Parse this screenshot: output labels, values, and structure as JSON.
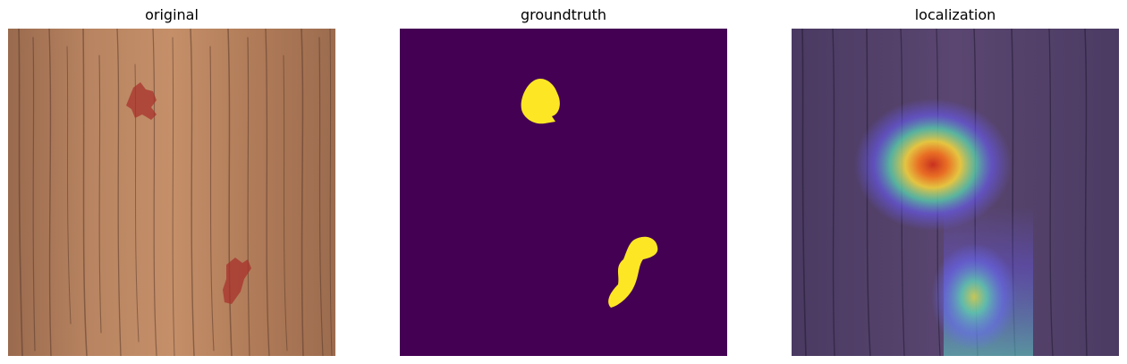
{
  "panels": [
    {
      "title": "original"
    },
    {
      "title": "groundtruth"
    },
    {
      "title": "localization"
    }
  ],
  "colors": {
    "wood": "#b07a58",
    "mask_background": "#440154",
    "mask_foreground": "#fde725",
    "defect_red": "#a8322c",
    "overlay_tint": "#3b2f6b"
  }
}
